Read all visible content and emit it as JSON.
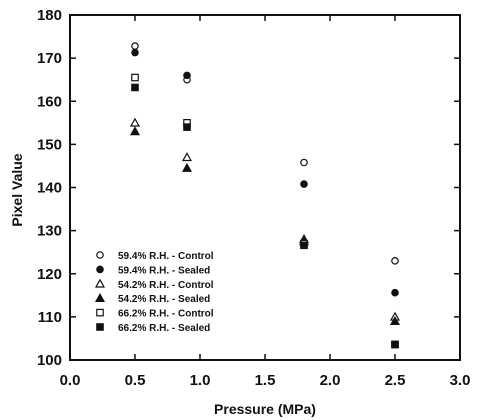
{
  "chart_data": {
    "type": "scatter",
    "title": "",
    "xlabel": "Pressure (MPa)",
    "ylabel": "Pixel Value",
    "xlim": [
      0.0,
      3.0
    ],
    "ylim": [
      100,
      180
    ],
    "x_ticks": [
      0.0,
      0.5,
      1.0,
      1.5,
      2.0,
      2.5,
      3.0
    ],
    "x_tick_labels": [
      "0.0",
      "0.5",
      "1.0",
      "1.5",
      "2.0",
      "2.5",
      "3.0"
    ],
    "y_ticks": [
      100,
      110,
      120,
      130,
      140,
      150,
      160,
      170,
      180
    ],
    "y_tick_labels": [
      "100",
      "110",
      "120",
      "130",
      "140",
      "150",
      "160",
      "170",
      "180"
    ],
    "grid": false,
    "legend_position": "bottom-left",
    "series": [
      {
        "name": "59.4% R.H. - Control",
        "marker": "circle-open",
        "x": [
          0.5,
          0.9,
          1.8,
          2.5
        ],
        "y": [
          172.8,
          165,
          145.8,
          123
        ]
      },
      {
        "name": "59.4% R.H. - Sealed",
        "marker": "circle-filled",
        "x": [
          0.5,
          0.9,
          1.8,
          2.5
        ],
        "y": [
          171.3,
          166,
          140.8,
          115.6
        ]
      },
      {
        "name": "54.2% R.H. - Control",
        "marker": "triangle-open",
        "x": [
          0.5,
          0.9,
          1.8,
          2.5
        ],
        "y": [
          155,
          147,
          128,
          110
        ]
      },
      {
        "name": "54.2% R.H. - Sealed",
        "marker": "triangle-filled",
        "x": [
          0.5,
          0.9,
          1.8,
          2.5
        ],
        "y": [
          153,
          144.5,
          127.5,
          109
        ]
      },
      {
        "name": "66.2% R.H. - Control",
        "marker": "square-open",
        "x": [
          0.5,
          0.9,
          1.8,
          2.5
        ],
        "y": [
          165.5,
          155,
          127,
          103.6
        ]
      },
      {
        "name": "66.2% R.H. - Sealed",
        "marker": "square-filled",
        "x": [
          0.5,
          0.9,
          1.8,
          2.5
        ],
        "y": [
          163.2,
          154,
          126.6,
          103.6
        ]
      }
    ]
  }
}
